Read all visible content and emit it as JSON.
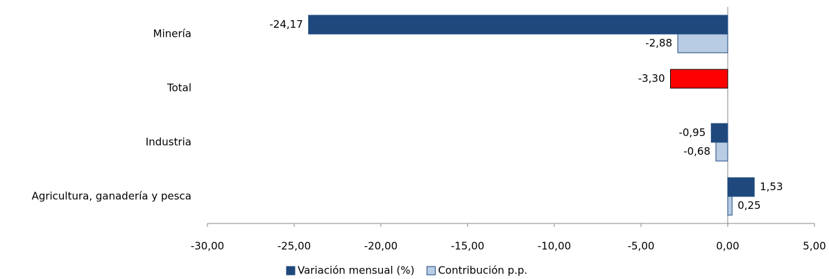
{
  "chart_data": {
    "type": "hbar",
    "categories": [
      "Minería",
      "Total",
      "Industria",
      "Agricultura, ganadería y pesca"
    ],
    "series": [
      {
        "name": "Variación mensual (%)",
        "color": "#1f497d",
        "colors": [
          "#1f497d",
          "#ff0000",
          "#1f497d",
          "#1f497d"
        ],
        "values": [
          -24.17,
          -3.3,
          -0.95,
          1.53
        ],
        "value_labels": [
          "-24,17",
          "-3,30",
          "-0,95",
          "1,53"
        ]
      },
      {
        "name": "Contribución p.p.",
        "color": "#b8cce4",
        "values": [
          -2.88,
          null,
          -0.68,
          0.25
        ],
        "value_labels": [
          "-2,88",
          null,
          "-0,68",
          "0,25"
        ]
      }
    ],
    "xlim": [
      -30,
      5
    ],
    "xticks": [
      {
        "value": -30,
        "label": "-30,00"
      },
      {
        "value": -25,
        "label": "-25,00"
      },
      {
        "value": -20,
        "label": "-20,00"
      },
      {
        "value": -15,
        "label": "-15,00"
      },
      {
        "value": -10,
        "label": "-10,00"
      },
      {
        "value": -5,
        "label": "-5,00"
      },
      {
        "value": 0,
        "label": "0,00"
      },
      {
        "value": 5,
        "label": "5,00"
      }
    ],
    "legend": "bottom"
  }
}
